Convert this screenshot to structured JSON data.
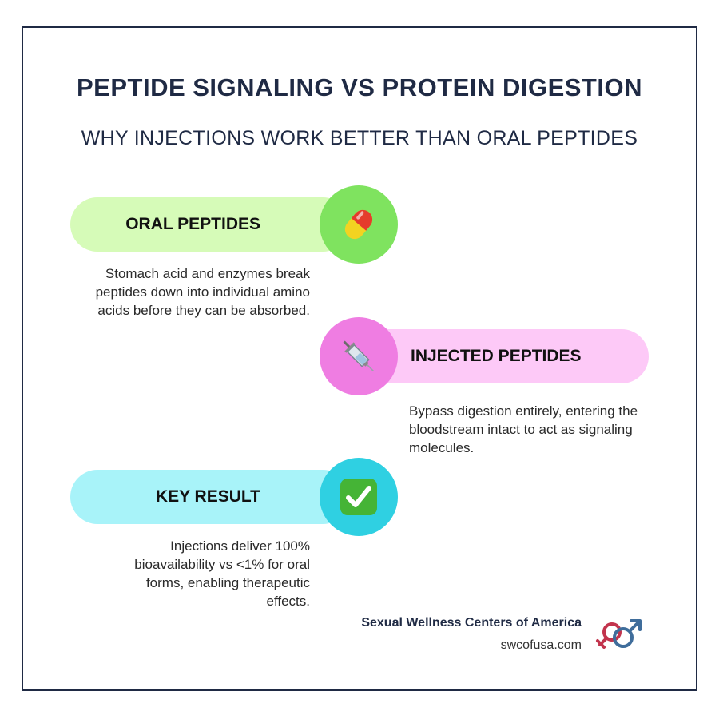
{
  "header": {
    "title": "PEPTIDE SIGNALING VS PROTEIN DIGESTION",
    "subtitle": "WHY INJECTIONS WORK BETTER THAN ORAL PEPTIDES"
  },
  "sections": [
    {
      "label": "ORAL PEPTIDES",
      "description": "Stomach acid and enzymes break peptides down into individual amino acids before they can be absorbed.",
      "icon": "pill-icon",
      "pill_color": "#d6fbb8",
      "circle_color": "#7fe35f"
    },
    {
      "label": "INJECTED PEPTIDES",
      "description": "Bypass digestion entirely, entering the bloodstream intact to act as signaling molecules.",
      "icon": "syringe-icon",
      "pill_color": "#fdc9f7",
      "circle_color": "#ef7de2"
    },
    {
      "label": "KEY RESULT",
      "description": "Injections deliver 100% bioavailability vs <1% for oral forms, enabling therapeutic effects.",
      "icon": "checkmark-icon",
      "pill_color": "#a8f3f9",
      "circle_color": "#2fd0e2"
    }
  ],
  "footer": {
    "brand": "Sexual Wellness Centers of America",
    "url": "swcofusa.com",
    "logo_icon": "gender-symbols-logo"
  }
}
